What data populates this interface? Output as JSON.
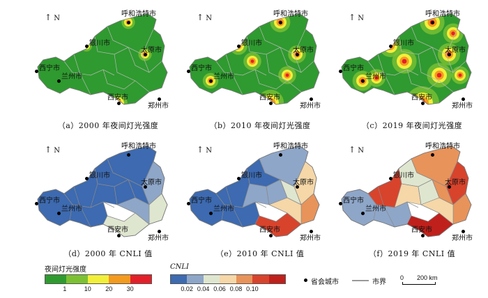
{
  "north_label": "N",
  "cities": [
    "呼和浩特市",
    "太原市",
    "银川市",
    "西宁市",
    "兰州市",
    "西安市",
    "郑州市"
  ],
  "captions": {
    "a": "（a）2000 年夜间灯光强度",
    "b": "（b）2010 年夜间灯光强度",
    "c": "（c）2019 年夜间灯光强度",
    "d": "（d）2000 年 CNLI 值",
    "e": "（e）2010 年 CNLI 值",
    "f": "（f）2019 年 CNLI 值"
  },
  "legend": {
    "light_title": "夜间灯光强度",
    "light_ticks": [
      "1",
      "10",
      "20",
      "30"
    ],
    "light_colors": [
      "#2f9a2f",
      "#7cc134",
      "#f2ef3a",
      "#f39a1f",
      "#e3202a"
    ],
    "cnli_title": "CNLI",
    "cnli_ticks": [
      "0.02",
      "0.04",
      "0.06",
      "0.08",
      "0.10"
    ],
    "cnli_colors": [
      "#3d6ab0",
      "#8ea6c8",
      "#dfe6cf",
      "#f5d7a8",
      "#e8935a",
      "#d8432c",
      "#c0201b"
    ],
    "capital_label": "省会城市",
    "boundary_label": "市界",
    "scale_zero": "0",
    "scale_label": "200 km"
  }
}
